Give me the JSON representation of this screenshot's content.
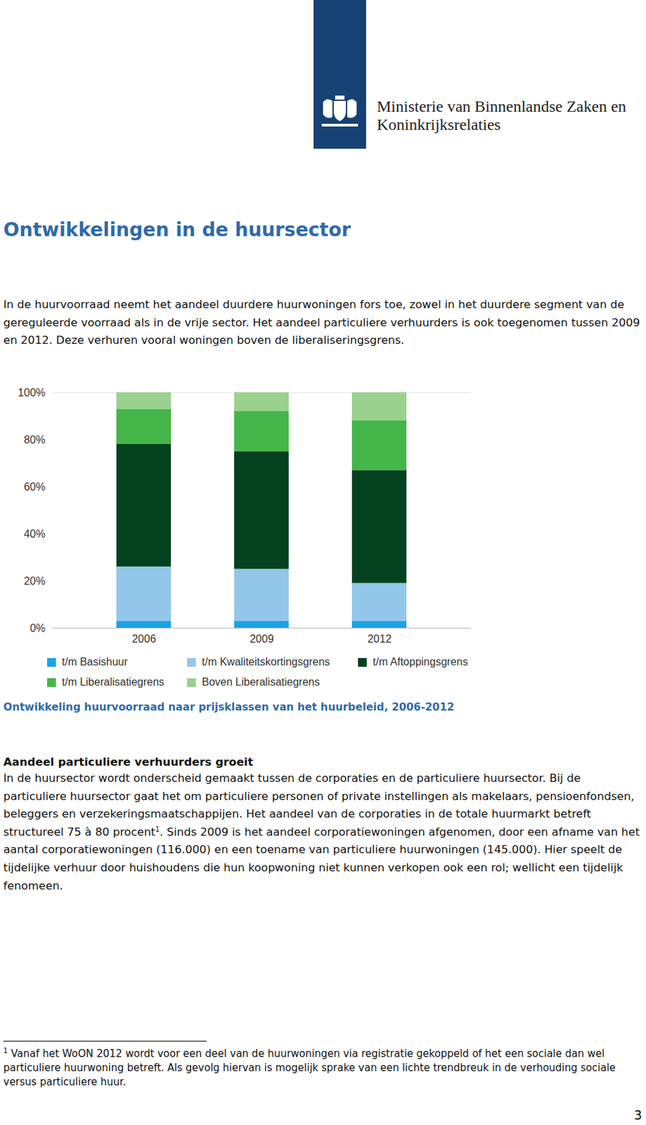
{
  "header": {
    "ministry": [
      "Ministerie van Binnenlandse Zaken en",
      "Koninkrijksrelaties"
    ]
  },
  "title": "Ontwikkelingen in de huursector",
  "intro": "In de huurvoorraad neemt het aandeel duurdere huurwoningen fors toe, zowel in het duurdere segment van de gereguleerde voorraad als in de vrije sector. Het aandeel particuliere verhuurders is ook toegenomen tussen 2009 en 2012. Deze verhuren vooral woningen boven de liberaliseringsgrens.",
  "chart_data": {
    "type": "bar",
    "title": "Ontwikkeling huurvoorraad naar prijsklassen van het huurbeleid, 2006-2012",
    "categories": [
      "2006",
      "2009",
      "2012"
    ],
    "series": [
      {
        "name": "t/m Basishuur",
        "color": "#1ba3e1",
        "values": [
          3,
          3,
          3
        ]
      },
      {
        "name": "t/m Kwaliteitskortingsgrens",
        "color": "#93c7e9",
        "values": [
          23,
          22,
          16
        ]
      },
      {
        "name": "t/m Aftoppingsgrens",
        "color": "#03411f",
        "values": [
          52,
          50,
          48
        ]
      },
      {
        "name": "t/m Liberalisatiegrens",
        "color": "#44b649",
        "values": [
          15,
          17,
          21
        ]
      },
      {
        "name": "Boven Liberalisatiegrens",
        "color": "#9bd18f",
        "values": [
          7,
          8,
          12
        ]
      }
    ],
    "stacked": true,
    "ylim": [
      0,
      100
    ],
    "yticks": [
      {
        "value": 0,
        "label": "0%"
      },
      {
        "value": 20,
        "label": "20%"
      },
      {
        "value": 40,
        "label": "40%"
      },
      {
        "value": 60,
        "label": "60%"
      },
      {
        "value": 80,
        "label": "80%"
      },
      {
        "value": 100,
        "label": "100%"
      }
    ],
    "grid": false,
    "legend": "bottom"
  },
  "section": {
    "heading": "Aandeel particuliere verhuurders groeit",
    "text_before": "In de huursector wordt onderscheid gemaakt tussen de corporaties en de particuliere huursector. Bij de particuliere huursector gaat het om particuliere personen of private instellingen als makelaars, pensioenfondsen, beleggers en verzekeringsmaatschappijen. Het aandeel van de corporaties in de totale huurmarkt betreft structureel 75 à 80 procent",
    "footnote_ref": "1",
    "text_after": ". Sinds 2009 is het aandeel corporatiewoningen afgenomen, door een afname van het aantal corporatiewoningen (116.000) en een toename van particuliere huurwoningen (145.000). Hier speelt de tijdelijke verhuur door huishoudens die hun koopwoning niet kunnen verkopen ook een rol; wellicht een tijdelijk fenomeen."
  },
  "footnote": {
    "marker": "1",
    "text": "Vanaf het WoON 2012 wordt voor een deel van de huurwoningen via registratie gekoppeld of het een sociale dan wel particuliere huurwoning betreft. Als gevolg hiervan is mogelijk sprake van een lichte trendbreuk in de verhouding sociale versus particuliere huur."
  },
  "page_number": 3
}
